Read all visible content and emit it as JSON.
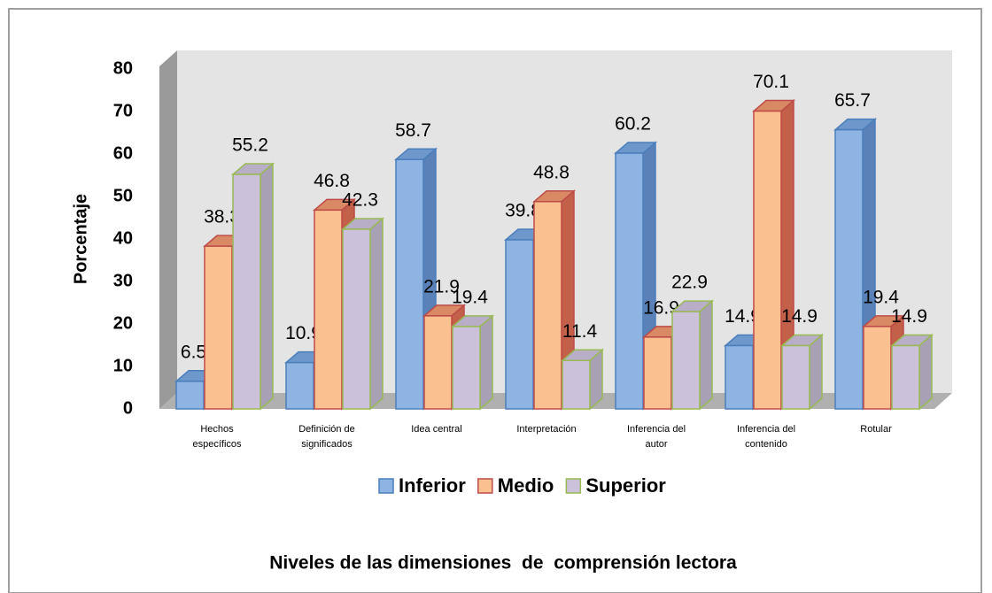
{
  "chart_data": {
    "type": "bar3d",
    "title": "Niveles de las dimensiones  de  comprensión lectora",
    "y_label": "Porcentaje",
    "categories": [
      "Hechos específicos",
      "Definición de significados",
      "Idea central",
      "Interpretación",
      "Inferencia del autor",
      "Inferencia del contenido",
      "Rotular"
    ],
    "series": [
      {
        "name": "Inferior",
        "color": "#8eb4e3",
        "values": [
          6.5,
          10.9,
          58.7,
          39.8,
          60.2,
          14.9,
          65.7
        ]
      },
      {
        "name": "Medio",
        "color": "#fac090",
        "values": [
          38.3,
          46.8,
          21.9,
          48.8,
          16.9,
          70.1,
          19.4
        ]
      },
      {
        "name": "Superior",
        "color": "#ccc1da",
        "values": [
          55.2,
          42.3,
          19.4,
          11.4,
          22.9,
          14.9,
          14.9
        ]
      }
    ],
    "ylim": [
      0,
      80
    ],
    "yticks": [
      0,
      10,
      20,
      30,
      40,
      50,
      60,
      70,
      80
    ]
  }
}
